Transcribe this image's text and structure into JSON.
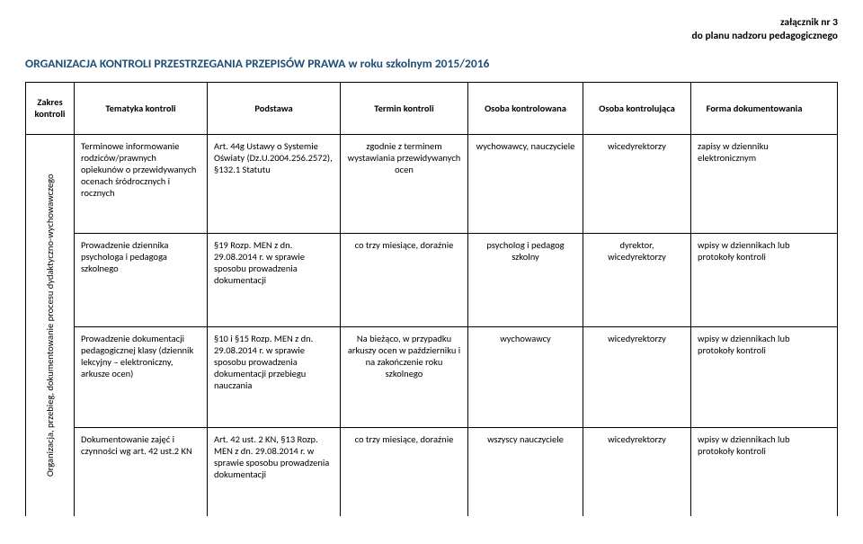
{
  "attachment": {
    "line1": "załącznik nr 3",
    "line2": "do planu nadzoru pedagogicznego"
  },
  "title": "ORGANIZACJA KONTROLI PRZESTRZEGANIA PRZEPISÓW PRAWA w roku szkolnym 2015/2016",
  "headers": {
    "zakres": "Zakres kontroli",
    "tematyka": "Tematyka kontroli",
    "podstawa": "Podstawa",
    "termin": "Termin kontroli",
    "osoba_kontrolowana": "Osoba kontrolowana",
    "osoba_kontrolujaca": "Osoba kontrolująca",
    "forma": "Forma dokumentowania"
  },
  "zakres_label": "Organizacja, przebieg, dokumentowanie procesu dydaktyczno-wychowawczego",
  "rows": [
    {
      "tematyka": "Terminowe informowanie rodziców/prawnych opiekunów o przewidywanych ocenach śródrocznych i rocznych",
      "podstawa": "Art. 44g Ustawy o Systemie Oświaty (Dz.U.2004.256.2572), §132.1 Statutu",
      "termin": "zgodnie z terminem wystawiania przewidywanych ocen",
      "kontrolowana": "wychowawcy, nauczyciele",
      "kontrolujaca": "wicedyrektorzy",
      "forma": "zapisy w dzienniku elektronicznym"
    },
    {
      "tematyka": "Prowadzenie dziennika psychologa i pedagoga szkolnego",
      "podstawa": "§19 Rozp. MEN z dn. 29.08.2014 r. w sprawie sposobu prowadzenia dokumentacji",
      "termin": "co trzy miesiące, doraźnie",
      "kontrolowana": "psycholog i pedagog szkolny",
      "kontrolujaca": "dyrektor, wicedyrektorzy",
      "forma": "wpisy w dziennikach lub protokoły kontroli"
    },
    {
      "tematyka": "Prowadzenie dokumentacji pedagogicznej klasy (dziennik lekcyjny – elektroniczny, arkusze ocen)",
      "podstawa": "§10 i  §15 Rozp. MEN z dn. 29.08.2014 r.  w sprawie sposobu prowadzenia dokumentacji przebiegu nauczania",
      "termin": "Na bieżąco, w przypadku arkuszy ocen w październiku i na zakończenie roku szkolnego",
      "kontrolowana": "wychowawcy",
      "kontrolujaca": "wicedyrektorzy",
      "forma": "wpisy w dziennikach lub protokoły kontroli"
    },
    {
      "tematyka": "Dokumentowanie zajęć i czynności wg art. 42 ust.2 KN",
      "podstawa": "Art. 42 ust. 2 KN, §13 Rozp. MEN z dn. 29.08.2014 r. w sprawie sposobu prowadzenia dokumentacji",
      "termin": "co trzy miesiące, doraźnie",
      "kontrolowana": "wszyscy nauczyciele",
      "kontrolujaca": "wicedyrektorzy",
      "forma": "wpisy w dziennikach lub protokoły kontroli"
    }
  ],
  "style": {
    "title_color": "#1f4e79",
    "border_color": "#000000",
    "bg_color": "#ffffff",
    "font_body": 10.5,
    "font_title": 13.5
  }
}
